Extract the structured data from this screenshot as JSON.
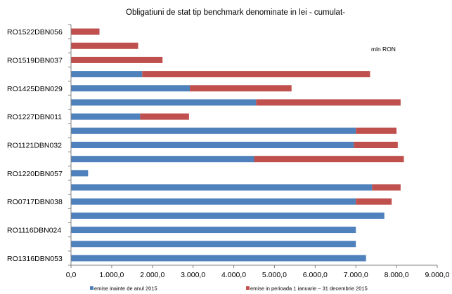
{
  "chart_data": {
    "type": "bar",
    "orientation": "horizontal",
    "stacked": true,
    "title": "Obligatiuni de stat tip benchmark denominate in lei - cumulat-",
    "unit_note": "mln RON",
    "xlim": [
      0,
      9000
    ],
    "x_tick_labels": [
      "0,0",
      "1.000,0",
      "2.000,0",
      "3.000,0",
      "4.000,0",
      "5.000,0",
      "6.000,0",
      "7.000,0",
      "8.000,0",
      "9.000,0"
    ],
    "x_ticks": [
      0,
      1000,
      2000,
      3000,
      4000,
      5000,
      6000,
      7000,
      8000,
      9000
    ],
    "category_labels_shown": [
      "RO1522DBN056",
      "RO1519DBN037",
      "RO1425DBN029",
      "RO1227DBN011",
      "RO1121DBN032",
      "RO1220DBN057",
      "RO0717DBN038",
      "RO1116DBN024",
      "RO1316DBN053"
    ],
    "categories": [
      "RO1522DBN056",
      "",
      "RO1519DBN037",
      "",
      "RO1425DBN029",
      "",
      "RO1227DBN011",
      "",
      "RO1121DBN032",
      "",
      "RO1220DBN057",
      "",
      "RO0717DBN038",
      "",
      "RO1116DBN024",
      "",
      "RO1316DBN053"
    ],
    "series": [
      {
        "name": "emise inainte de anul 2015",
        "color": "#4f81bd",
        "values": [
          0,
          0,
          0,
          1750,
          2920,
          4550,
          1700,
          7000,
          6950,
          4500,
          420,
          7400,
          7000,
          7700,
          7000,
          7000,
          7250
        ]
      },
      {
        "name": "emise in perioada 1 ianuarie – 31  decembrie 2015",
        "color": "#c0504d",
        "values": [
          700,
          1650,
          2250,
          5600,
          2500,
          3550,
          1200,
          1000,
          1080,
          3680,
          0,
          700,
          880,
          0,
          0,
          0,
          0
        ]
      }
    ],
    "grid": false,
    "legend_position": "bottom"
  }
}
